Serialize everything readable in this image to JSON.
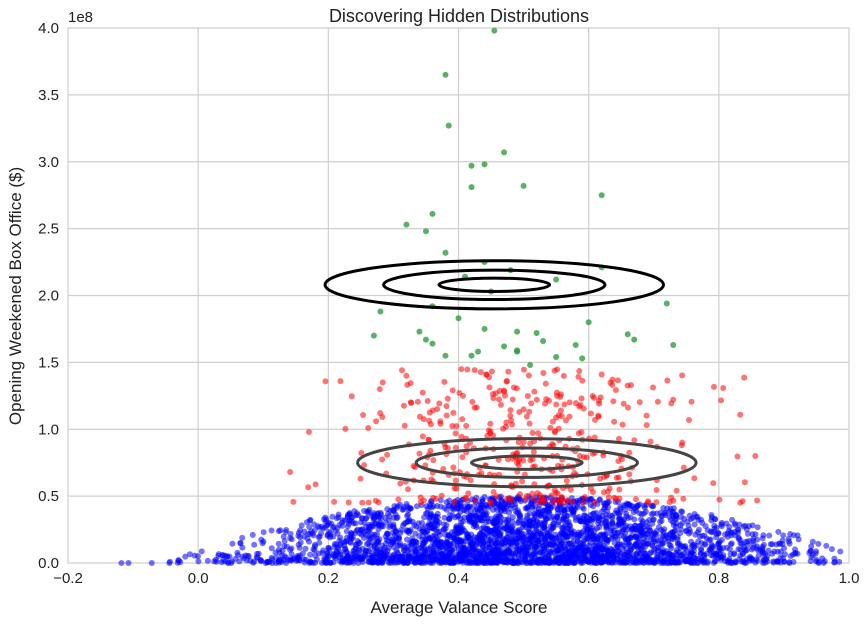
{
  "chart_data": {
    "type": "scatter",
    "title": "Discovering Hidden Distributions",
    "xlabel": "Average Valance Score",
    "ylabel": "Opening Weekened Box Office ($)",
    "y_multiplier": "1e8",
    "xlim": [
      -0.2,
      1.0
    ],
    "ylim": [
      0,
      400000000
    ],
    "x_ticks": [
      -0.2,
      0.0,
      0.2,
      0.4,
      0.6,
      0.8,
      1.0
    ],
    "x_tick_labels": [
      "−0.2",
      "0.0",
      "0.2",
      "0.4",
      "0.6",
      "0.8",
      "1.0"
    ],
    "y_ticks": [
      0,
      50000000,
      100000000,
      150000000,
      200000000,
      250000000,
      300000000,
      350000000,
      400000000
    ],
    "y_tick_labels": [
      "0.0",
      "0.5",
      "1.0",
      "1.5",
      "2.0",
      "2.5",
      "3.0",
      "3.5",
      "4.0"
    ],
    "grid": true,
    "series": [
      {
        "color": "#0000ff",
        "count": 3000,
        "x_center": 0.5,
        "x_spread": 0.2,
        "y_max": 50000000
      },
      {
        "color": "#ff0000",
        "count": 420,
        "x_center": 0.5,
        "x_spread": 0.13,
        "y_range": [
          45000000,
          145000000
        ]
      },
      {
        "color": "#2e9e3e",
        "points": [
          [
            0.455,
            398000000
          ],
          [
            0.38,
            365000000
          ],
          [
            0.385,
            327000000
          ],
          [
            0.47,
            307000000
          ],
          [
            0.42,
            297000000
          ],
          [
            0.44,
            298000000
          ],
          [
            0.5,
            282000000
          ],
          [
            0.42,
            281000000
          ],
          [
            0.62,
            275000000
          ],
          [
            0.36,
            261000000
          ],
          [
            0.32,
            253000000
          ],
          [
            0.35,
            248000000
          ],
          [
            0.38,
            232000000
          ],
          [
            0.44,
            225000000
          ],
          [
            0.48,
            219000000
          ],
          [
            0.62,
            221000000
          ],
          [
            0.41,
            214000000
          ],
          [
            0.45,
            203000000
          ],
          [
            0.55,
            212000000
          ],
          [
            0.36,
            192000000
          ],
          [
            0.28,
            188000000
          ],
          [
            0.4,
            183000000
          ],
          [
            0.6,
            180000000
          ],
          [
            0.72,
            194000000
          ],
          [
            0.44,
            175000000
          ],
          [
            0.49,
            173000000
          ],
          [
            0.52,
            172000000
          ],
          [
            0.66,
            171000000
          ],
          [
            0.27,
            170000000
          ],
          [
            0.34,
            173000000
          ],
          [
            0.36,
            164000000
          ],
          [
            0.47,
            162000000
          ],
          [
            0.53,
            166000000
          ],
          [
            0.58,
            163000000
          ],
          [
            0.67,
            167000000
          ],
          [
            0.43,
            158000000
          ],
          [
            0.49,
            158000000
          ],
          [
            0.55,
            154000000
          ],
          [
            0.42,
            155000000
          ],
          [
            0.38,
            155000000
          ],
          [
            0.73,
            163000000
          ],
          [
            0.51,
            148000000
          ],
          [
            0.49,
            159000000
          ],
          [
            0.35,
            167000000
          ],
          [
            0.59,
            153000000
          ]
        ]
      }
    ],
    "contours": [
      {
        "color": "#000000",
        "center": [
          0.455,
          208000000
        ],
        "radii": [
          [
            0.26,
            18000000
          ],
          [
            0.17,
            11000000
          ],
          [
            0.085,
            5000000
          ]
        ]
      },
      {
        "color": "#444444",
        "center": [
          0.505,
          75000000
        ],
        "radii": [
          [
            0.26,
            18000000
          ],
          [
            0.17,
            11000000
          ],
          [
            0.085,
            5000000
          ]
        ]
      }
    ]
  }
}
